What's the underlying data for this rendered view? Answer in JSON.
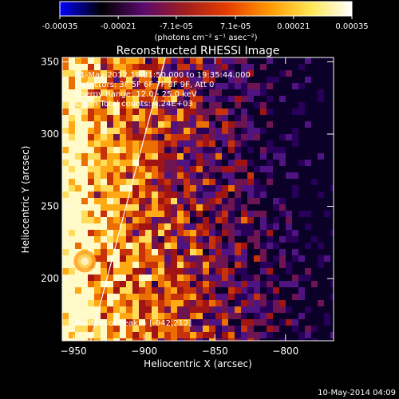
{
  "colorbar": {
    "tick_values": [
      -0.00035,
      -0.00021,
      -7.1e-05,
      7.1e-05,
      0.00021,
      0.00035
    ],
    "tick_labels": [
      "-0.00035",
      "-0.00021",
      "-7.1e-05",
      "7.1e-05",
      "0.00021",
      "0.00035"
    ],
    "unit_label": "(photons cm⁻² s⁻¹ asec⁻²)",
    "range": [
      -0.00035,
      0.00035
    ],
    "colors": [
      "#0000ff",
      "#000000",
      "#5a0a6e",
      "#a01e1e",
      "#e63c00",
      "#ff9600",
      "#ffe650",
      "#ffffff"
    ]
  },
  "annotations": {
    "time_range": "31-May-2012 19:31:50.000 to 19:35:44.000",
    "detectors": "Detectors: 3F 5F 6F 7F 8F 9F, Att 0",
    "energy": "Energy Range: 12.0 - 25.0 keV",
    "clean": "Clean     Total counts: 4.24E+03",
    "peak": "Position of Peak = [-942,212]"
  },
  "footer": {
    "date": "10-May-2014 04:09"
  },
  "chart_data": {
    "type": "heatmap",
    "title": "Reconstructed RHESSI Image",
    "xlabel": "Heliocentric X (arcsec)",
    "ylabel": "Heliocentric Y (arcsec)",
    "xlim": [
      -958,
      -766
    ],
    "ylim": [
      157,
      353
    ],
    "x_ticks": [
      -950,
      -900,
      -850,
      -800
    ],
    "y_ticks": [
      200,
      250,
      300,
      350
    ],
    "x_tick_labels": [
      "−950",
      "−900",
      "−850",
      "−800"
    ],
    "y_tick_labels": [
      "200",
      "250",
      "300",
      "350"
    ],
    "peak_position": [
      -942,
      212
    ],
    "limb_line": [
      [
        -938,
        157
      ],
      [
        -885,
        353
      ]
    ]
  }
}
